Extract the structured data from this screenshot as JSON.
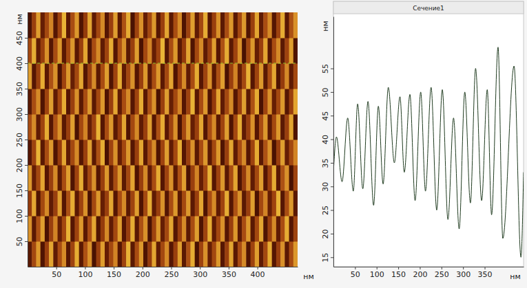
{
  "chart_data": [
    {
      "type": "heatmap",
      "xlim": [
        0,
        470
      ],
      "ylim": [
        0,
        500
      ],
      "xticks": [
        50,
        100,
        150,
        200,
        250,
        300,
        350,
        400
      ],
      "yticks": [
        50,
        100,
        150,
        200,
        250,
        300,
        350,
        400,
        450
      ],
      "x_label": "нм",
      "y_label": "нм",
      "zlim": [
        15,
        60
      ],
      "section_y": 400,
      "z": [
        [
          24,
          38,
          52,
          22,
          36,
          54,
          25,
          39,
          50,
          23,
          37,
          55,
          24,
          40,
          51,
          21,
          36,
          53,
          26,
          38,
          49,
          23,
          37,
          56,
          24,
          39,
          52,
          22,
          35,
          54,
          25,
          38,
          50,
          23,
          36,
          53,
          24,
          40,
          55,
          21,
          37,
          51,
          26,
          38,
          52,
          23,
          36,
          54,
          24,
          39,
          50,
          22,
          37,
          53,
          25,
          38,
          55,
          23,
          36,
          51,
          24,
          39,
          52
        ],
        [
          51,
          24,
          40,
          53,
          21,
          36,
          49,
          26,
          38,
          56,
          23,
          37,
          52,
          24,
          39,
          54,
          22,
          35,
          50,
          25,
          38,
          53,
          23,
          36,
          55,
          24,
          40,
          51,
          21,
          37,
          52,
          26,
          38,
          54,
          23,
          36,
          50,
          24,
          39,
          53,
          22,
          37,
          55,
          25,
          38,
          51,
          23,
          36,
          52,
          24,
          39,
          52,
          24,
          38,
          54,
          22,
          36,
          50,
          25,
          39,
          55,
          23,
          37
        ],
        [
          35,
          54,
          22,
          38,
          50,
          25,
          36,
          53,
          23,
          40,
          55,
          24,
          37,
          51,
          21,
          38,
          52,
          26,
          36,
          54,
          23,
          39,
          50,
          24,
          37,
          53,
          22,
          38,
          55,
          25,
          36,
          51,
          23,
          39,
          52,
          24,
          38,
          52,
          24,
          36,
          54,
          22,
          39,
          50,
          25,
          37,
          55,
          23,
          40,
          51,
          24,
          36,
          53,
          21,
          38,
          49,
          26,
          37,
          56,
          23,
          39,
          52,
          24
        ],
        [
          52,
          26,
          38,
          54,
          23,
          36,
          50,
          24,
          39,
          53,
          22,
          37,
          55,
          25,
          38,
          51,
          23,
          36,
          52,
          24,
          39,
          52,
          24,
          38,
          54,
          22,
          36,
          50,
          25,
          39,
          55,
          23,
          37,
          51,
          24,
          40,
          53,
          21,
          36,
          49,
          26,
          38,
          56,
          23,
          37,
          52,
          24,
          39,
          54,
          22,
          35,
          50,
          25,
          38,
          53,
          23,
          36,
          55,
          24,
          40,
          51,
          21,
          37
        ],
        [
          23,
          37,
          56,
          24,
          39,
          52,
          22,
          35,
          54,
          25,
          38,
          50,
          23,
          36,
          53,
          24,
          40,
          55,
          21,
          37,
          51,
          26,
          38,
          52,
          23,
          36,
          54,
          24,
          39,
          50,
          22,
          37,
          53,
          25,
          38,
          55,
          23,
          36,
          51,
          24,
          39,
          52,
          24,
          38,
          52,
          22,
          36,
          54,
          25,
          39,
          50,
          23,
          37,
          55,
          24,
          40,
          51,
          21,
          36,
          53,
          26,
          38,
          49
        ],
        [
          39,
          50,
          25,
          37,
          55,
          23,
          40,
          51,
          24,
          36,
          53,
          21,
          38,
          49,
          26,
          37,
          56,
          23,
          39,
          52,
          24,
          35,
          54,
          22,
          38,
          50,
          25,
          36,
          53,
          23,
          40,
          55,
          24,
          37,
          51,
          21,
          38,
          52,
          26,
          36,
          54,
          23,
          39,
          50,
          24,
          37,
          53,
          22,
          38,
          55,
          25,
          36,
          51,
          23,
          39,
          52,
          24,
          38,
          52,
          24,
          36,
          54,
          22
        ],
        [
          24,
          39,
          50,
          22,
          37,
          53,
          25,
          38,
          55,
          23,
          36,
          51,
          24,
          39,
          52,
          24,
          38,
          52,
          22,
          36,
          54,
          25,
          39,
          50,
          23,
          37,
          55,
          24,
          40,
          51,
          21,
          36,
          53,
          26,
          38,
          49,
          23,
          37,
          56,
          24,
          39,
          52,
          22,
          35,
          54,
          25,
          38,
          50,
          23,
          36,
          53,
          24,
          40,
          55,
          21,
          37,
          51,
          26,
          38,
          52,
          23,
          36,
          54
        ],
        [
          53,
          23,
          36,
          55,
          24,
          40,
          51,
          21,
          37,
          52,
          26,
          38,
          54,
          23,
          36,
          50,
          24,
          39,
          53,
          22,
          37,
          55,
          25,
          38,
          51,
          23,
          36,
          52,
          24,
          39,
          52,
          24,
          38,
          54,
          22,
          36,
          50,
          25,
          39,
          55,
          23,
          37,
          51,
          24,
          40,
          53,
          21,
          36,
          49,
          26,
          38,
          56,
          23,
          37,
          52,
          24,
          39,
          54,
          22,
          35,
          50,
          25,
          38
        ],
        [
          38,
          55,
          25,
          36,
          51,
          23,
          39,
          52,
          24,
          38,
          52,
          24,
          36,
          54,
          22,
          39,
          50,
          25,
          37,
          55,
          23,
          40,
          51,
          24,
          36,
          53,
          21,
          38,
          49,
          26,
          37,
          56,
          23,
          39,
          52,
          24,
          35,
          54,
          22,
          38,
          50,
          25,
          36,
          53,
          23,
          40,
          55,
          24,
          37,
          51,
          21,
          38,
          52,
          26,
          36,
          54,
          23,
          39,
          50,
          24,
          37,
          53,
          22
        ],
        [
          21,
          36,
          53,
          26,
          38,
          49,
          23,
          37,
          56,
          24,
          39,
          52,
          22,
          35,
          54,
          25,
          38,
          50,
          23,
          36,
          53,
          24,
          40,
          55,
          21,
          37,
          51,
          26,
          38,
          52,
          23,
          36,
          54,
          24,
          39,
          50,
          22,
          37,
          53,
          25,
          38,
          55,
          23,
          36,
          51,
          24,
          39,
          52,
          24,
          38,
          52,
          22,
          36,
          54,
          25,
          39,
          50,
          23,
          37,
          55,
          24,
          40,
          51
        ]
      ]
    },
    {
      "type": "line",
      "title": "Сечение1",
      "xlim": [
        0,
        440
      ],
      "ylim": [
        13,
        66
      ],
      "xticks": [
        50,
        100,
        150,
        200,
        250,
        300,
        350
      ],
      "yticks": [
        15,
        20,
        25,
        30,
        35,
        40,
        45,
        50,
        55
      ],
      "x_label": "нм",
      "y_label": "нм",
      "x": [
        0,
        7,
        20,
        33,
        46,
        56,
        68,
        80,
        93,
        104,
        115,
        127,
        141,
        154,
        164,
        177,
        189,
        202,
        213,
        226,
        239,
        252,
        265,
        278,
        291,
        304,
        317,
        329,
        343,
        356,
        366,
        381,
        392,
        418,
        434,
        440
      ],
      "series": [
        {
          "color": "#1f3b1f",
          "values": [
            33,
            40.5,
            31,
            44.5,
            29,
            47.5,
            29.5,
            48,
            26,
            47,
            30.5,
            51,
            35,
            49,
            33,
            49.5,
            27,
            50,
            29,
            51,
            25,
            50.5,
            23,
            44.5,
            21,
            50,
            26.5,
            55,
            27,
            50.5,
            24,
            59.5,
            19,
            55.5,
            15,
            33
          ]
        }
      ]
    }
  ]
}
